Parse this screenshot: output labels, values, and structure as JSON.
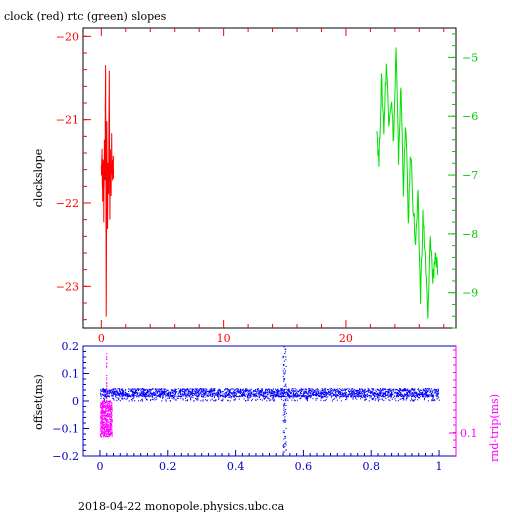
{
  "title": "clock (red) rtc (green) slopes",
  "footer": "2018-04-22  monopole.physics.ubc.ca",
  "chart_data": [
    {
      "type": "line",
      "ylabel": "clockslope",
      "xlim": [
        -1.5,
        29
      ],
      "ylim_left": [
        -23.5,
        -19.9
      ],
      "ylim_right": [
        -9.6,
        -4.5
      ],
      "x_ticks": [
        0,
        10,
        20
      ],
      "y_left_ticks": [
        -20,
        -21,
        -22,
        -23
      ],
      "y_right_ticks": [
        -5,
        -6,
        -7,
        -8,
        -9
      ],
      "colors": {
        "clock": "#ff0000",
        "rtc": "#00e000",
        "left_axis": "#ff0000",
        "right_axis": "#00c800"
      },
      "series": [
        {
          "color_key": "clock",
          "axis": "left",
          "x": [
            0.0,
            0.05,
            0.1,
            0.15,
            0.2,
            0.25,
            0.3,
            0.35,
            0.4,
            0.45,
            0.5,
            0.55,
            0.6,
            0.65,
            0.7,
            0.75,
            0.8,
            0.85,
            0.9,
            0.95,
            1.0
          ],
          "y": [
            -21.6,
            -21.4,
            -21.9,
            -21.5,
            -22.1,
            -21.3,
            -21.7,
            -20.2,
            -23.4,
            -21.0,
            -22.4,
            -21.5,
            -21.8,
            -20.5,
            -22.1,
            -21.4,
            -21.9,
            -21.3,
            -21.7,
            -21.5,
            -21.6
          ]
        },
        {
          "color_key": "rtc",
          "axis": "right",
          "x": [
            22.5,
            22.7,
            22.9,
            23.1,
            23.3,
            23.5,
            23.7,
            23.9,
            24.1,
            24.3,
            24.5,
            24.7,
            24.9,
            25.1,
            25.3,
            25.5,
            25.7,
            25.9,
            26.1,
            26.3,
            26.5,
            26.7,
            26.9,
            27.1,
            27.3,
            27.5
          ],
          "y": [
            -6.1,
            -6.8,
            -5.4,
            -6.2,
            -5.1,
            -6.0,
            -5.7,
            -6.4,
            -4.9,
            -6.7,
            -5.5,
            -7.2,
            -6.1,
            -7.8,
            -6.6,
            -7.5,
            -8.2,
            -7.4,
            -9.1,
            -7.7,
            -8.4,
            -9.5,
            -8.0,
            -8.8,
            -8.3,
            -8.7
          ]
        }
      ]
    },
    {
      "type": "scatter",
      "ylabel_left": "offset(ms)",
      "ylabel_right": "rnd-trip(ms)",
      "xlim": [
        -0.05,
        1.05
      ],
      "ylim": [
        -0.2,
        0.2
      ],
      "x_ticks": [
        "0",
        "0.2",
        "0.4",
        "0.6",
        "0.8",
        "1"
      ],
      "y_ticks": [
        "0.2",
        "0.1",
        "0",
        "-0.1",
        "-0.2"
      ],
      "y_right_ticks": [
        "0.1"
      ],
      "colors": {
        "offset": "#0000ff",
        "rndtrip": "#ff00ff",
        "left_axis": "#0000c0",
        "right_axis": "#ff00ff"
      },
      "series": [
        {
          "color_key": "offset",
          "description_hidden": true,
          "x_range": [
            0.0,
            1.0
          ],
          "band_center": 0.03,
          "band_halfwidth": 0.015,
          "scatter_spread": 0.03,
          "spike_x": 0.545,
          "spike_range": [
            -0.19,
            0.2
          ]
        },
        {
          "color_key": "rndtrip",
          "x_range": [
            0.0,
            0.035
          ],
          "y_range": [
            -0.13,
            -0.0
          ],
          "spike_top": 0.18
        }
      ]
    }
  ]
}
